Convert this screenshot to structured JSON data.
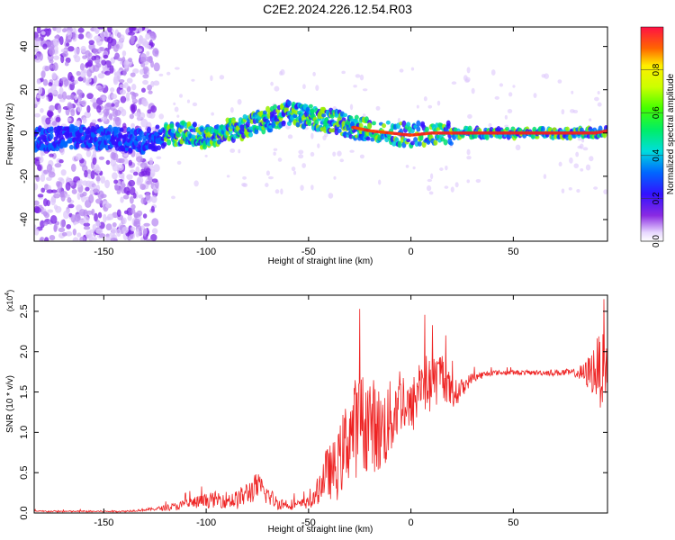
{
  "page": {
    "title": "C2E2.2024.226.12.54.R03"
  },
  "chart_data": [
    {
      "type": "heatmap",
      "title": "C2E2.2024.226.12.54.R03",
      "xlabel": "Height of straight line (km)",
      "ylabel": "Frequency (Hz)",
      "xlim": [
        -184,
        96
      ],
      "ylim": [
        -50,
        49
      ],
      "xticks": [
        -150,
        -100,
        -50,
        0,
        50
      ],
      "yticks": [
        -40,
        -20,
        0,
        20,
        40
      ],
      "ridge": {
        "x": [
          -184,
          -160,
          -140,
          -130,
          -120,
          -110,
          -100,
          -90,
          -80,
          -70,
          -60,
          -55,
          -50,
          -45,
          -40,
          -35,
          -30,
          -20,
          -10,
          0,
          10,
          20,
          50,
          90,
          96
        ],
        "frequency": [
          -3,
          -2,
          -3,
          -4,
          -1,
          0,
          -2,
          1,
          3,
          6,
          9,
          8,
          8,
          6,
          6,
          5,
          3,
          1,
          0,
          -1,
          0,
          0,
          0,
          0,
          1
        ]
      },
      "colorbar": {
        "label": "Normalized spectral amplitude",
        "ticks": [
          "0.0",
          "0.2",
          "0.4",
          "0.6",
          "0.8"
        ],
        "range": [
          0,
          1
        ]
      }
    },
    {
      "type": "line",
      "title": "",
      "xlabel": "Height of straight line (km)",
      "ylabel": "SNR (10 * v/v)",
      "multiplier_label": "(x10",
      "multiplier_exp": "4",
      "multiplier_close": ")",
      "xlim": [
        -184,
        96
      ],
      "ylim": [
        0,
        2.7
      ],
      "xticks": [
        -150,
        -100,
        -50,
        0,
        50
      ],
      "yticks": [
        "0.0",
        "0.5",
        "1.0",
        "1.5",
        "2.0",
        "2.5"
      ],
      "series": [
        {
          "name": "SNR",
          "color": "#ee2222",
          "envelope_x": [
            -184,
            -140,
            -125,
            -115,
            -105,
            -95,
            -85,
            -75,
            -65,
            -55,
            -48,
            -42,
            -36,
            -30,
            -25,
            -20,
            -15,
            -10,
            -5,
            0,
            5,
            10,
            15,
            20,
            25,
            30,
            40,
            60,
            80,
            85,
            90,
            93,
            96
          ],
          "envelope_y": [
            0.02,
            0.02,
            0.05,
            0.08,
            0.13,
            0.17,
            0.16,
            0.33,
            0.12,
            0.1,
            0.14,
            0.48,
            0.55,
            1.0,
            1.1,
            1.15,
            1.0,
            1.15,
            1.45,
            1.25,
            1.65,
            1.55,
            1.75,
            1.45,
            1.55,
            1.68,
            1.74,
            1.74,
            1.74,
            1.72,
            1.78,
            1.78,
            1.78
          ],
          "noise_amp": [
            0.01,
            0.01,
            0.02,
            0.05,
            0.08,
            0.1,
            0.12,
            0.18,
            0.08,
            0.06,
            0.08,
            0.3,
            0.4,
            0.6,
            0.65,
            0.6,
            0.55,
            0.5,
            0.45,
            0.35,
            0.4,
            0.35,
            0.3,
            0.2,
            0.12,
            0.06,
            0.03,
            0.03,
            0.05,
            0.15,
            0.35,
            0.5,
            0.25
          ]
        }
      ]
    }
  ]
}
